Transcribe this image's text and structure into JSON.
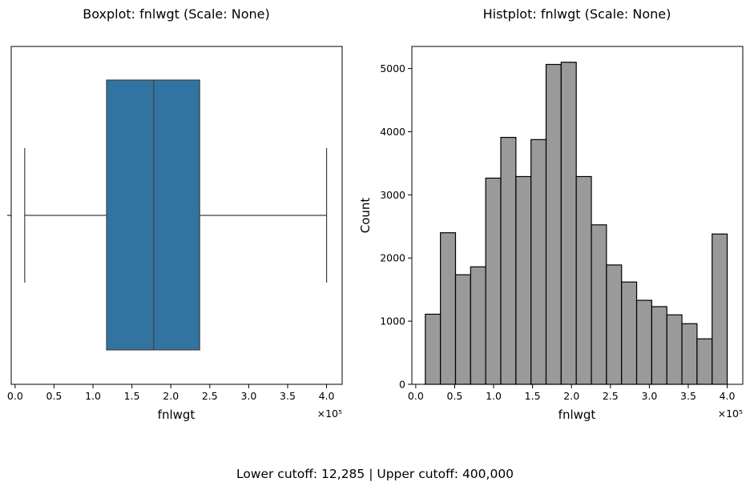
{
  "footer": "Lower cutoff: 12,285 | Upper cutoff: 400,000",
  "chart_data": [
    {
      "type": "boxplot",
      "title": "Boxplot: fnlwgt (Scale: None)",
      "xlabel": "fnlwgt",
      "ylabel": "",
      "offset_label": "×10⁵",
      "xlim": [
        -0.05,
        4.2
      ],
      "xticks": [
        0.0,
        0.5,
        1.0,
        1.5,
        2.0,
        2.5,
        3.0,
        3.5,
        4.0
      ],
      "xtick_labels": [
        "0.0",
        "0.5",
        "1.0",
        "1.5",
        "2.0",
        "2.5",
        "3.0",
        "3.5",
        "4.0"
      ],
      "box": {
        "whisker_low": 0.123,
        "q1": 1.175,
        "median": 1.78,
        "q3": 2.37,
        "whisker_high": 4.0
      },
      "box_color": "#3274a1",
      "line_color": "#3f3f3f",
      "grid": false
    },
    {
      "type": "bar",
      "title": "Histplot: fnlwgt (Scale: None)",
      "xlabel": "fnlwgt",
      "ylabel": "Count",
      "offset_label": "×10⁵",
      "xlim": [
        -0.05,
        4.2
      ],
      "ylim": [
        0,
        5350
      ],
      "xticks": [
        0.0,
        0.5,
        1.0,
        1.5,
        2.0,
        2.5,
        3.0,
        3.5,
        4.0
      ],
      "xtick_labels": [
        "0.0",
        "0.5",
        "1.0",
        "1.5",
        "2.0",
        "2.5",
        "3.0",
        "3.5",
        "4.0"
      ],
      "yticks": [
        0,
        1000,
        2000,
        3000,
        4000,
        5000
      ],
      "ytick_labels": [
        "0",
        "1000",
        "2000",
        "3000",
        "4000",
        "5000"
      ],
      "bins_start": 0.123,
      "bins_end": 4.0,
      "counts": [
        1110,
        2400,
        1735,
        1860,
        3265,
        3910,
        3290,
        3875,
        5065,
        5100,
        3290,
        2525,
        1890,
        1620,
        1330,
        1230,
        1100,
        960,
        720,
        2380
      ],
      "bar_color": "#9a9a9a",
      "edge_color": "#000000",
      "grid": false
    }
  ]
}
